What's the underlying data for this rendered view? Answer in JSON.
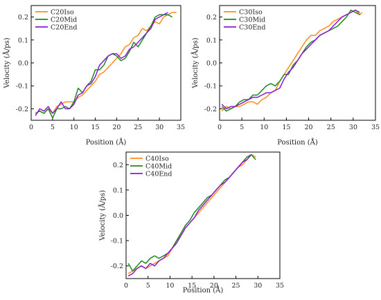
{
  "chart_data": [
    {
      "type": "line",
      "xlabel": "Position (Å)",
      "ylabel": "Velocity (Å/ps)",
      "xlim": [
        0,
        35
      ],
      "ylim": [
        -0.25,
        0.25
      ],
      "xticks": [
        "0",
        "5",
        "10",
        "15",
        "20",
        "25",
        "30",
        "35"
      ],
      "yticks": [
        "-0.2",
        "-0.1",
        "0.0",
        "0.1",
        "0.2"
      ],
      "legend_position": "top-left",
      "grid": false,
      "series": [
        {
          "name": "C20Iso",
          "color": "#ff8c1a",
          "x": [
            1,
            2,
            3,
            4,
            5,
            6,
            7,
            8,
            9,
            10,
            11,
            12,
            13,
            14,
            15,
            16,
            17,
            18,
            19,
            20,
            21,
            22,
            23,
            24,
            25,
            26,
            27,
            28,
            29,
            30,
            31,
            32,
            33,
            34
          ],
          "y": [
            -0.22,
            -0.21,
            -0.22,
            -0.2,
            -0.22,
            -0.19,
            -0.18,
            -0.17,
            -0.17,
            -0.17,
            -0.15,
            -0.14,
            -0.12,
            -0.1,
            -0.08,
            -0.05,
            -0.04,
            -0.02,
            0.0,
            0.02,
            0.04,
            0.07,
            0.08,
            0.11,
            0.12,
            0.15,
            0.14,
            0.16,
            0.18,
            0.17,
            0.2,
            0.21,
            0.22,
            0.22
          ]
        },
        {
          "name": "C20Mid",
          "color": "#1a8a1a",
          "x": [
            1,
            2,
            3,
            4,
            5,
            6,
            7,
            8,
            9,
            10,
            11,
            12,
            13,
            14,
            15,
            16,
            17,
            18,
            19,
            20,
            21,
            22,
            23,
            24,
            25,
            26,
            27,
            28,
            29,
            30,
            31,
            32,
            33
          ],
          "y": [
            -0.22,
            -0.21,
            -0.22,
            -0.2,
            -0.24,
            -0.2,
            -0.2,
            -0.19,
            -0.2,
            -0.17,
            -0.11,
            -0.13,
            -0.1,
            -0.08,
            -0.03,
            -0.03,
            -0.01,
            0.03,
            0.04,
            0.03,
            0.01,
            0.02,
            0.05,
            0.09,
            0.07,
            0.1,
            0.13,
            0.16,
            0.2,
            0.21,
            0.21,
            0.21,
            0.2
          ]
        },
        {
          "name": "C20End",
          "color": "#8a1ad6",
          "x": [
            1,
            2,
            3,
            4,
            5,
            6,
            7,
            8,
            9,
            10,
            11,
            12,
            13,
            14,
            15,
            16,
            17,
            18,
            19,
            20,
            21,
            22,
            23,
            24,
            25,
            26,
            27,
            28,
            29,
            30,
            31,
            32
          ],
          "y": [
            -0.23,
            -0.2,
            -0.21,
            -0.19,
            -0.22,
            -0.2,
            -0.17,
            -0.2,
            -0.2,
            -0.18,
            -0.14,
            -0.13,
            -0.1,
            -0.09,
            -0.06,
            -0.01,
            0.01,
            0.03,
            0.04,
            0.04,
            0.02,
            0.03,
            0.06,
            0.07,
            0.09,
            0.11,
            0.13,
            0.15,
            0.19,
            0.2,
            0.21,
            0.22
          ]
        }
      ]
    },
    {
      "type": "line",
      "xlabel": "Position (Å)",
      "ylabel": "Velocity (Å/ps)",
      "xlim": [
        0,
        35
      ],
      "ylim": [
        -0.25,
        0.25
      ],
      "xticks": [
        "0",
        "5",
        "10",
        "15",
        "20",
        "25",
        "30",
        "35"
      ],
      "yticks": [
        "-0.2",
        "-0.1",
        "0.0",
        "0.1",
        "0.2"
      ],
      "legend_position": "top-left",
      "grid": false,
      "series": [
        {
          "name": "C30Iso",
          "color": "#ff8c1a",
          "x": [
            0.5,
            1.5,
            2.5,
            3.5,
            4.5,
            5.5,
            6.5,
            7.5,
            8.5,
            9.5,
            10.5,
            11.5,
            12.5,
            13.5,
            14.5,
            15.5,
            16.5,
            17.5,
            18.5,
            19.5,
            20.5,
            21.5,
            22.5,
            23.5,
            24.5,
            25.5,
            26.5,
            27.5,
            28.5,
            29.5,
            30.5,
            31.5,
            32
          ],
          "y": [
            -0.21,
            -0.19,
            -0.2,
            -0.19,
            -0.19,
            -0.18,
            -0.17,
            -0.17,
            -0.18,
            -0.16,
            -0.15,
            -0.13,
            -0.12,
            -0.08,
            -0.05,
            -0.02,
            0.01,
            0.04,
            0.07,
            0.1,
            0.12,
            0.12,
            0.14,
            0.15,
            0.16,
            0.18,
            0.19,
            0.2,
            0.21,
            0.22,
            0.23,
            0.21,
            0.22
          ]
        },
        {
          "name": "C30Mid",
          "color": "#1a8a1a",
          "x": [
            0.5,
            1.5,
            2.5,
            3.5,
            4.5,
            5.5,
            6.5,
            7.5,
            8.5,
            9.5,
            10.5,
            11.5,
            12.5,
            13.5,
            14.5,
            15.5,
            16.5,
            17.5,
            18.5,
            19.5,
            20.5,
            21.5,
            22.5,
            23.5,
            24.5,
            25.5,
            26.5,
            27.5,
            28.5,
            29.5,
            30.5,
            31.5
          ],
          "y": [
            -0.19,
            -0.21,
            -0.2,
            -0.19,
            -0.17,
            -0.16,
            -0.16,
            -0.14,
            -0.14,
            -0.12,
            -0.1,
            -0.09,
            -0.1,
            -0.08,
            -0.05,
            -0.05,
            -0.01,
            0.01,
            0.04,
            0.07,
            0.09,
            0.1,
            0.12,
            0.13,
            0.14,
            0.15,
            0.16,
            0.18,
            0.2,
            0.23,
            0.22,
            0.21
          ]
        },
        {
          "name": "C30End",
          "color": "#8a1ad6",
          "x": [
            0.5,
            1.5,
            2.5,
            3.5,
            4.5,
            5.5,
            6.5,
            7.5,
            8.5,
            9.5,
            10.5,
            11.5,
            12.5,
            13.5,
            14.5,
            15.5,
            16.5,
            17.5,
            18.5,
            19.5,
            20.5,
            21.5,
            22.5,
            23.5,
            24.5,
            25.5,
            26.5,
            27.5,
            28.5,
            29.5,
            30.5,
            31.5
          ],
          "y": [
            -0.18,
            -0.2,
            -0.19,
            -0.19,
            -0.18,
            -0.17,
            -0.16,
            -0.15,
            -0.15,
            -0.14,
            -0.13,
            -0.13,
            -0.12,
            -0.11,
            -0.07,
            -0.04,
            -0.02,
            0.01,
            0.04,
            0.06,
            0.08,
            0.1,
            0.12,
            0.13,
            0.14,
            0.16,
            0.18,
            0.2,
            0.21,
            0.22,
            0.23,
            0.22
          ]
        }
      ]
    },
    {
      "type": "line",
      "xlabel": "Position (Å)",
      "ylabel": "Velocity (Å/ps)",
      "xlim": [
        0,
        35
      ],
      "ylim": [
        -0.25,
        0.25
      ],
      "xticks": [
        "0",
        "5",
        "10",
        "15",
        "20",
        "25",
        "30",
        "35"
      ],
      "yticks": [
        "-0.2",
        "-0.1",
        "0.0",
        "0.1",
        "0.2"
      ],
      "legend_position": "top-left",
      "grid": false,
      "series": [
        {
          "name": "C40Iso",
          "color": "#ff8c1a",
          "x": [
            0.5,
            1.5,
            2.5,
            3.5,
            4.5,
            5.5,
            6.5,
            7.5,
            8.5,
            9.5,
            10.5,
            11.5,
            12.5,
            13.5,
            14.5,
            15.5,
            16.5,
            17.5,
            18.5,
            19.5,
            20.5,
            21.5,
            22.5,
            23.5,
            24.5,
            25.5,
            26.5,
            27.5,
            28.5,
            29.5
          ],
          "y": [
            -0.23,
            -0.22,
            -0.21,
            -0.2,
            -0.21,
            -0.2,
            -0.19,
            -0.18,
            -0.17,
            -0.16,
            -0.13,
            -0.1,
            -0.08,
            -0.05,
            -0.03,
            -0.01,
            0.01,
            0.03,
            0.05,
            0.07,
            0.09,
            0.11,
            0.13,
            0.15,
            0.17,
            0.19,
            0.2,
            0.22,
            0.24,
            0.23
          ]
        },
        {
          "name": "C40Mid",
          "color": "#1a8a1a",
          "x": [
            0.5,
            1.5,
            2.5,
            3.5,
            4.5,
            5.5,
            6.5,
            7.5,
            8.5,
            9.5,
            10.5,
            11.5,
            12.5,
            13.5,
            14.5,
            15.5,
            16.5,
            17.5,
            18.5,
            19.5,
            20.5,
            21.5,
            22.5,
            23.5,
            24.5,
            25.5,
            26.5,
            27.5,
            28.5,
            29.5
          ],
          "y": [
            -0.19,
            -0.22,
            -0.2,
            -0.18,
            -0.19,
            -0.17,
            -0.16,
            -0.17,
            -0.16,
            -0.15,
            -0.13,
            -0.1,
            -0.07,
            -0.04,
            -0.02,
            0.01,
            0.03,
            0.05,
            0.07,
            0.08,
            0.1,
            0.12,
            0.14,
            0.15,
            0.17,
            0.19,
            0.21,
            0.23,
            0.24,
            0.22
          ]
        },
        {
          "name": "C40End",
          "color": "#8a1ad6",
          "x": [
            0.5,
            1.5,
            2.5,
            3.5,
            4.5,
            5.5,
            6.5,
            7.5,
            8.5,
            9.5,
            10.5,
            11.5,
            12.5,
            13.5,
            14.5,
            15.5,
            16.5,
            17.5,
            18.5,
            19.5,
            20.5,
            21.5,
            22.5,
            23.5,
            24.5,
            25.5,
            26.5,
            27.5,
            28.5
          ],
          "y": [
            -0.24,
            -0.23,
            -0.21,
            -0.2,
            -0.21,
            -0.19,
            -0.2,
            -0.18,
            -0.17,
            -0.15,
            -0.13,
            -0.11,
            -0.08,
            -0.05,
            -0.03,
            -0.01,
            0.02,
            0.04,
            0.06,
            0.08,
            0.1,
            0.12,
            0.13,
            0.15,
            0.17,
            0.19,
            0.21,
            0.22,
            0.24
          ]
        }
      ]
    }
  ]
}
